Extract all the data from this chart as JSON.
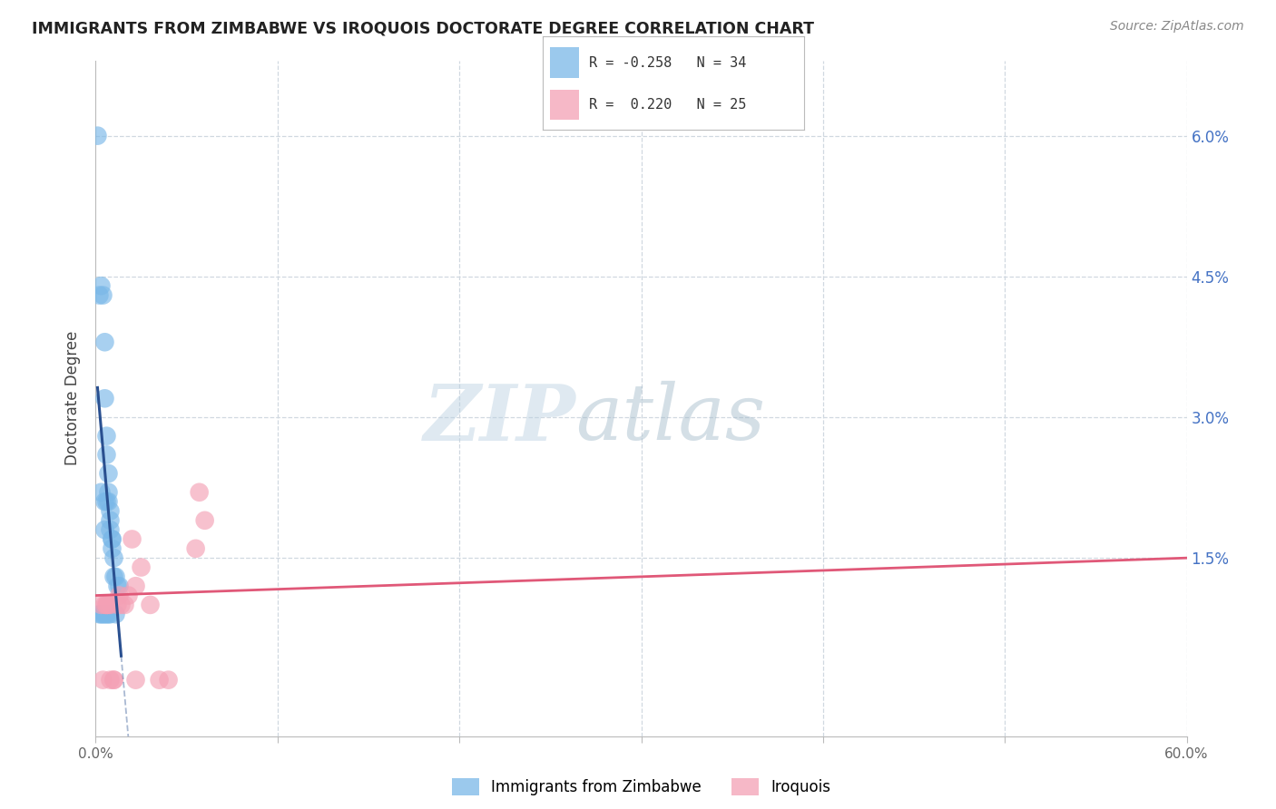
{
  "title": "IMMIGRANTS FROM ZIMBABWE VS IROQUOIS DOCTORATE DEGREE CORRELATION CHART",
  "source": "Source: ZipAtlas.com",
  "ylabel_left": "Doctorate Degree",
  "legend_label1": "Immigrants from Zimbabwe",
  "legend_label2": "Iroquois",
  "legend_text1": "R = -0.258   N = 34",
  "legend_text2": "R =  0.220   N = 25",
  "xlim": [
    0.0,
    0.6
  ],
  "ylim": [
    -0.004,
    0.068
  ],
  "yticks": [
    0.015,
    0.03,
    0.045,
    0.06
  ],
  "ytick_labels": [
    "1.5%",
    "3.0%",
    "4.5%",
    "6.0%"
  ],
  "xticks": [
    0.0,
    0.1,
    0.2,
    0.3,
    0.4,
    0.5,
    0.6
  ],
  "xtick_labels": [
    "0.0%",
    "",
    "",
    "",
    "",
    "",
    "60.0%"
  ],
  "watermark_zip": "ZIP",
  "watermark_atlas": "atlas",
  "color_blue": "#7ab8e8",
  "color_pink": "#f4a0b5",
  "color_blue_line": "#2a5090",
  "color_pink_line": "#e05878",
  "grid_color": "#d0d8e0",
  "blue_x": [
    0.001,
    0.002,
    0.002,
    0.003,
    0.003,
    0.004,
    0.004,
    0.005,
    0.005,
    0.005,
    0.005,
    0.006,
    0.006,
    0.006,
    0.006,
    0.007,
    0.007,
    0.007,
    0.007,
    0.008,
    0.008,
    0.008,
    0.008,
    0.009,
    0.009,
    0.009,
    0.01,
    0.01,
    0.011,
    0.011,
    0.012,
    0.013,
    0.003,
    0.005
  ],
  "blue_y": [
    0.06,
    0.043,
    0.009,
    0.044,
    0.009,
    0.043,
    0.009,
    0.038,
    0.032,
    0.021,
    0.009,
    0.028,
    0.026,
    0.021,
    0.009,
    0.024,
    0.022,
    0.021,
    0.009,
    0.02,
    0.019,
    0.018,
    0.009,
    0.017,
    0.017,
    0.016,
    0.015,
    0.013,
    0.013,
    0.009,
    0.012,
    0.012,
    0.022,
    0.018
  ],
  "pink_x": [
    0.003,
    0.005,
    0.006,
    0.007,
    0.008,
    0.008,
    0.01,
    0.012,
    0.013,
    0.014,
    0.016,
    0.018,
    0.02,
    0.022,
    0.025,
    0.03,
    0.035,
    0.04,
    0.055,
    0.057,
    0.06,
    0.004,
    0.006,
    0.01,
    0.022
  ],
  "pink_y": [
    0.01,
    0.01,
    0.01,
    0.01,
    0.01,
    0.002,
    0.002,
    0.01,
    0.011,
    0.01,
    0.01,
    0.011,
    0.017,
    0.012,
    0.014,
    0.01,
    0.002,
    0.002,
    0.016,
    0.022,
    0.019,
    0.002,
    0.01,
    0.002,
    0.002
  ]
}
